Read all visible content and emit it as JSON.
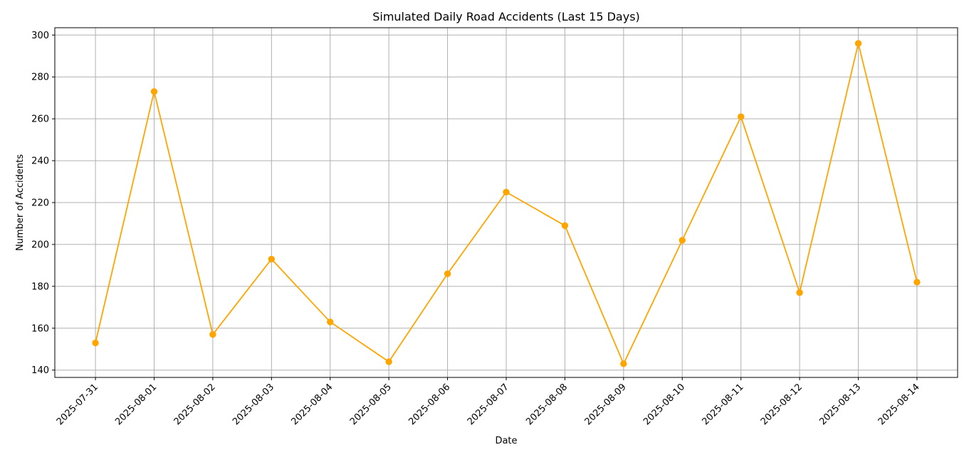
{
  "chart_data": {
    "type": "line",
    "title": "Simulated Daily Road Accidents (Last 15 Days)",
    "xlabel": "Date",
    "ylabel": "Number of Accidents",
    "categories": [
      "2025-07-31",
      "2025-08-01",
      "2025-08-02",
      "2025-08-03",
      "2025-08-04",
      "2025-08-05",
      "2025-08-06",
      "2025-08-07",
      "2025-08-08",
      "2025-08-09",
      "2025-08-10",
      "2025-08-11",
      "2025-08-12",
      "2025-08-13",
      "2025-08-14"
    ],
    "series": [
      {
        "values": [
          153,
          273,
          157,
          193,
          163,
          144,
          186,
          225,
          209,
          143,
          202,
          261,
          177,
          296,
          182
        ]
      }
    ],
    "ylim": [
      136.5,
      303.5
    ],
    "yticks": [
      140,
      160,
      180,
      200,
      220,
      240,
      260,
      280,
      300
    ],
    "grid": true,
    "marker": "circle",
    "line_color": "#FFA500",
    "grid_color": "#B0B0B0"
  }
}
